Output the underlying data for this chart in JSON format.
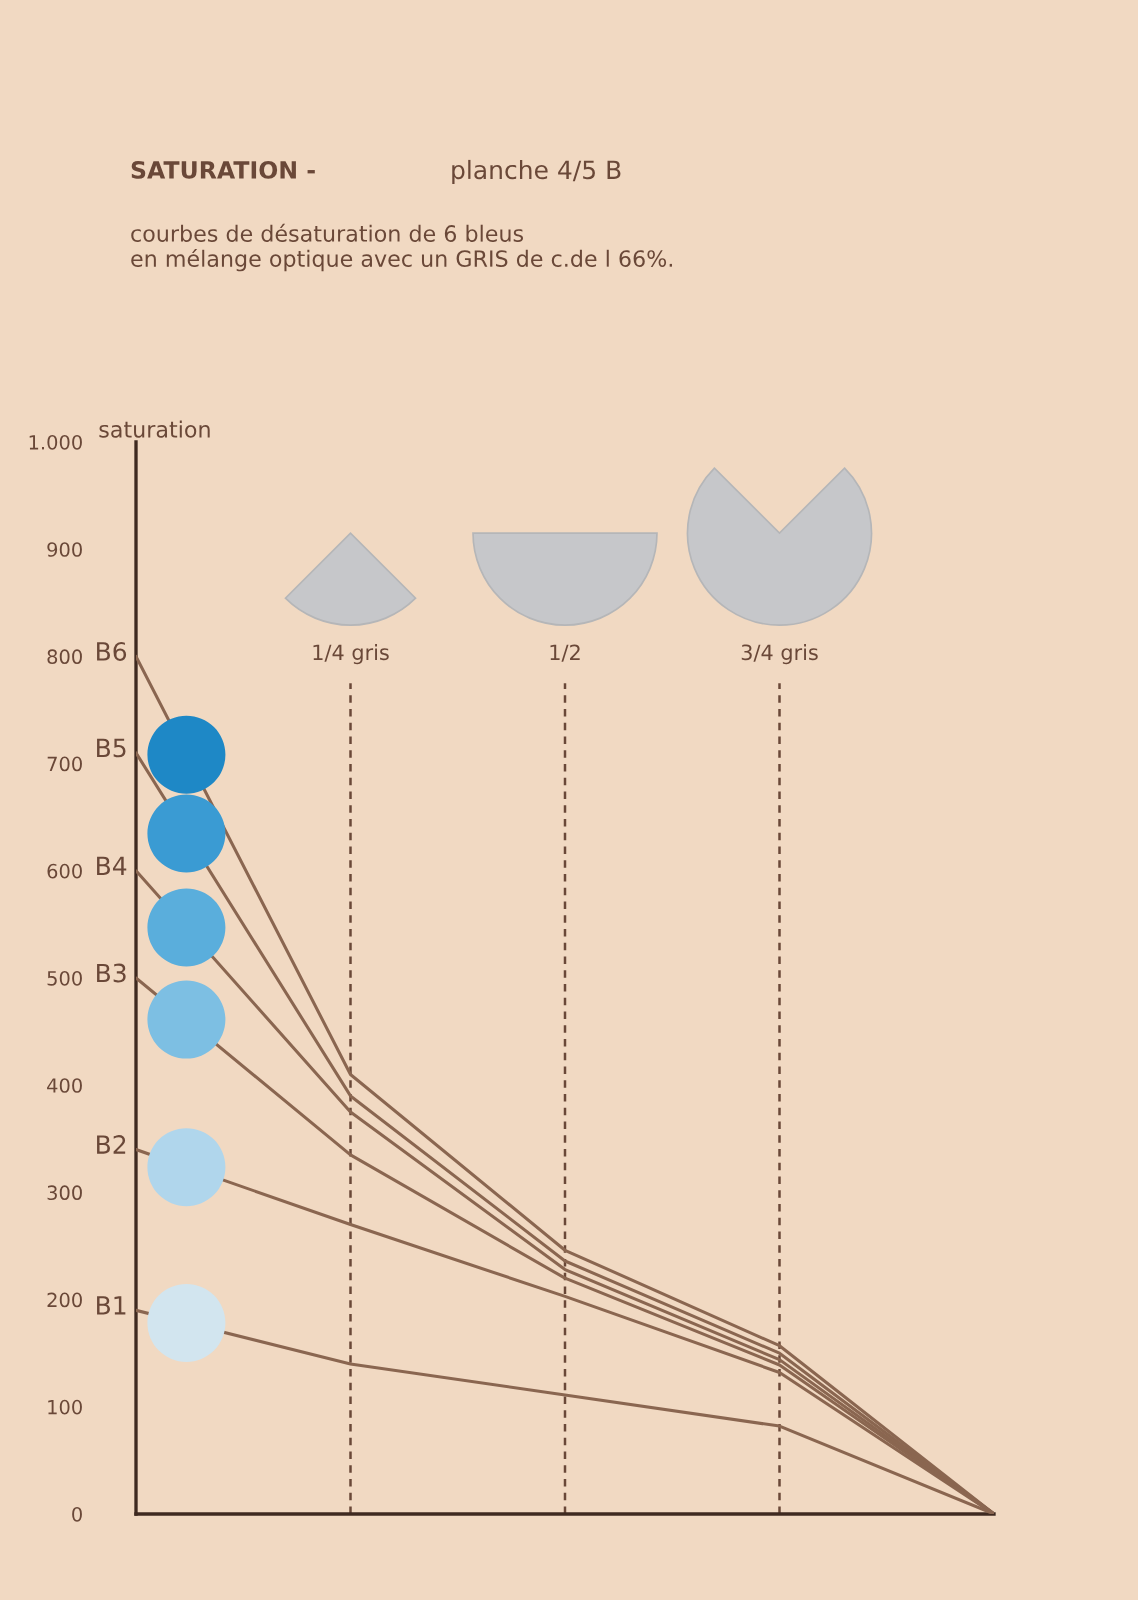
{
  "chart_data": {
    "type": "line",
    "title": "SATURATION -",
    "subtitle": "courbes de désaturation de 6 bleus\nen mélange optique avec un GRIS de c.de l 66%.",
    "ylabel": "saturation",
    "annotations": [
      "planche 4/5 B"
    ],
    "categories": [
      null,
      "1/4 gris",
      "1/2",
      "3/4 gris",
      null
    ],
    "series": [
      {
        "name": "B6",
        "color": "#8a6650",
        "values": [
          800,
          410,
          246,
          157,
          0
        ]
      },
      {
        "name": "B5",
        "color": "#8a6650",
        "values": [
          710,
          390,
          236,
          150,
          0
        ]
      },
      {
        "name": "B4",
        "color": "#8a6650",
        "values": [
          600,
          375,
          228,
          144,
          0
        ]
      },
      {
        "name": "B3",
        "color": "#8a6650",
        "values": [
          500,
          335,
          220,
          139,
          0
        ]
      },
      {
        "name": "B2",
        "color": "#8a6650",
        "values": [
          340,
          270,
          203,
          132,
          0
        ]
      },
      {
        "name": "B1",
        "color": "#8a6650",
        "values": [
          190,
          140,
          111,
          82,
          0
        ]
      }
    ],
    "ylim": [
      0,
      1000
    ],
    "yticks": [
      0,
      100,
      200,
      300,
      400,
      500,
      600,
      700,
      800,
      900,
      {
        "value": 1000,
        "label": "1.000"
      }
    ],
    "grid": "x"
  }
}
